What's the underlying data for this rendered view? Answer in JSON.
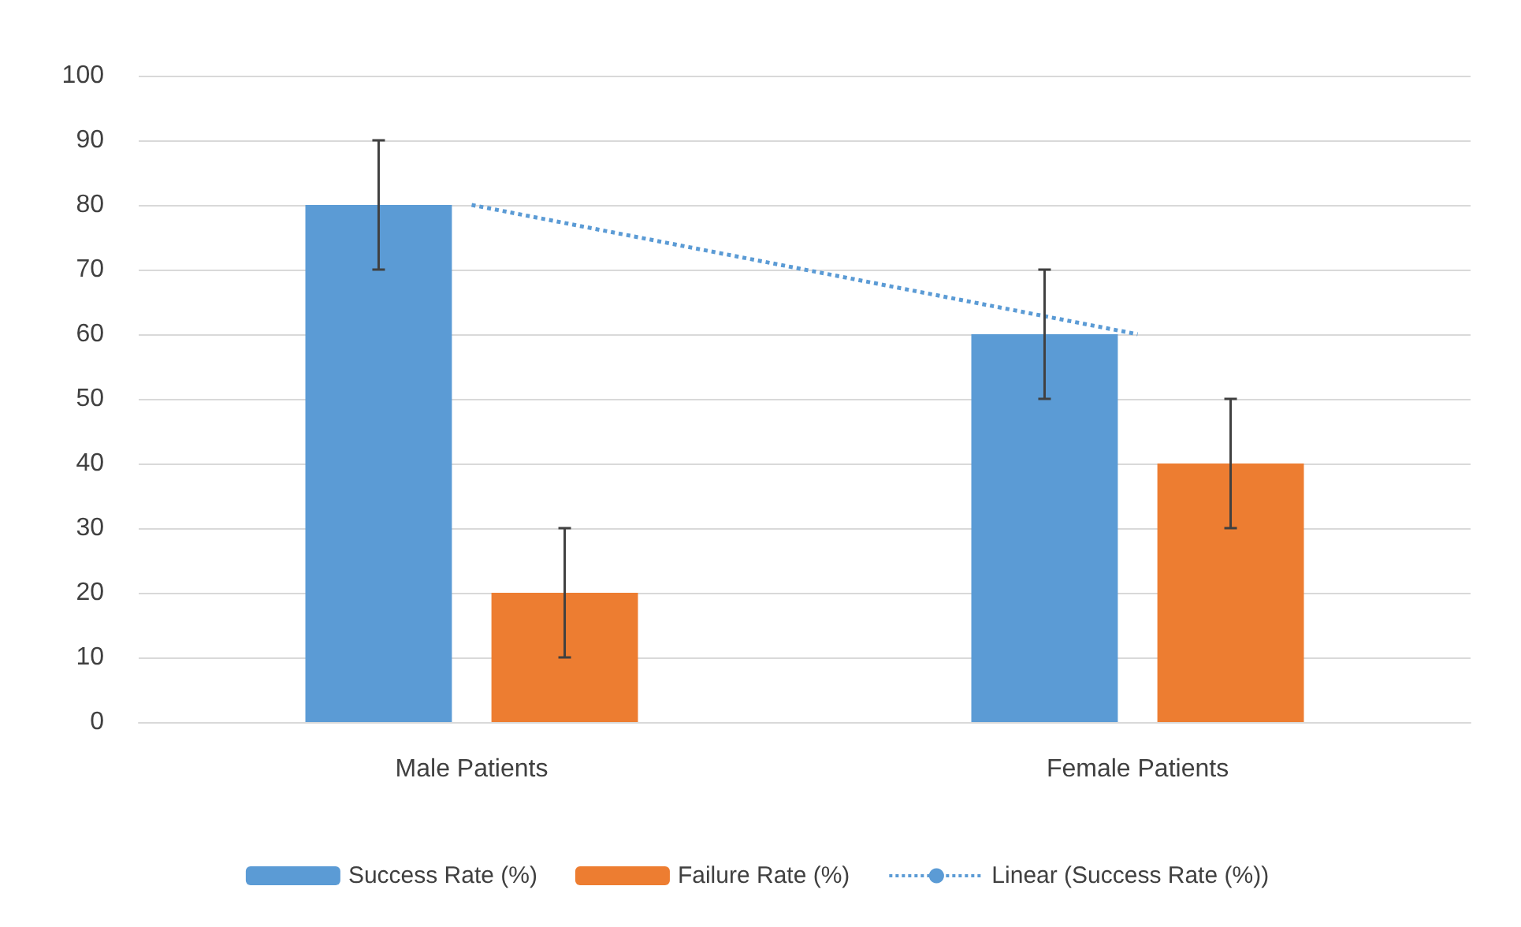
{
  "chart_data": {
    "type": "bar",
    "categories": [
      "Male Patients",
      "Female Patients"
    ],
    "series": [
      {
        "name": "Success Rate (%)",
        "color": "#5b9bd5",
        "values": [
          80,
          60
        ],
        "errors": [
          10,
          10
        ]
      },
      {
        "name": "Failure Rate (%)",
        "color": "#ed7d31",
        "values": [
          20,
          40
        ],
        "errors": [
          10,
          10
        ]
      },
      {
        "name": "Linear (Success Rate (%))",
        "type": "line",
        "color": "#5b9bd5",
        "x": [
          "Male Patients",
          "Female Patients"
        ],
        "values": [
          80,
          60
        ],
        "line_style": "dotted",
        "marker": "none"
      }
    ],
    "ylim": [
      0,
      100
    ],
    "yticks": [
      0,
      10,
      20,
      30,
      40,
      50,
      60,
      70,
      80,
      90,
      100
    ],
    "grid": "y",
    "legend": "bottom"
  }
}
